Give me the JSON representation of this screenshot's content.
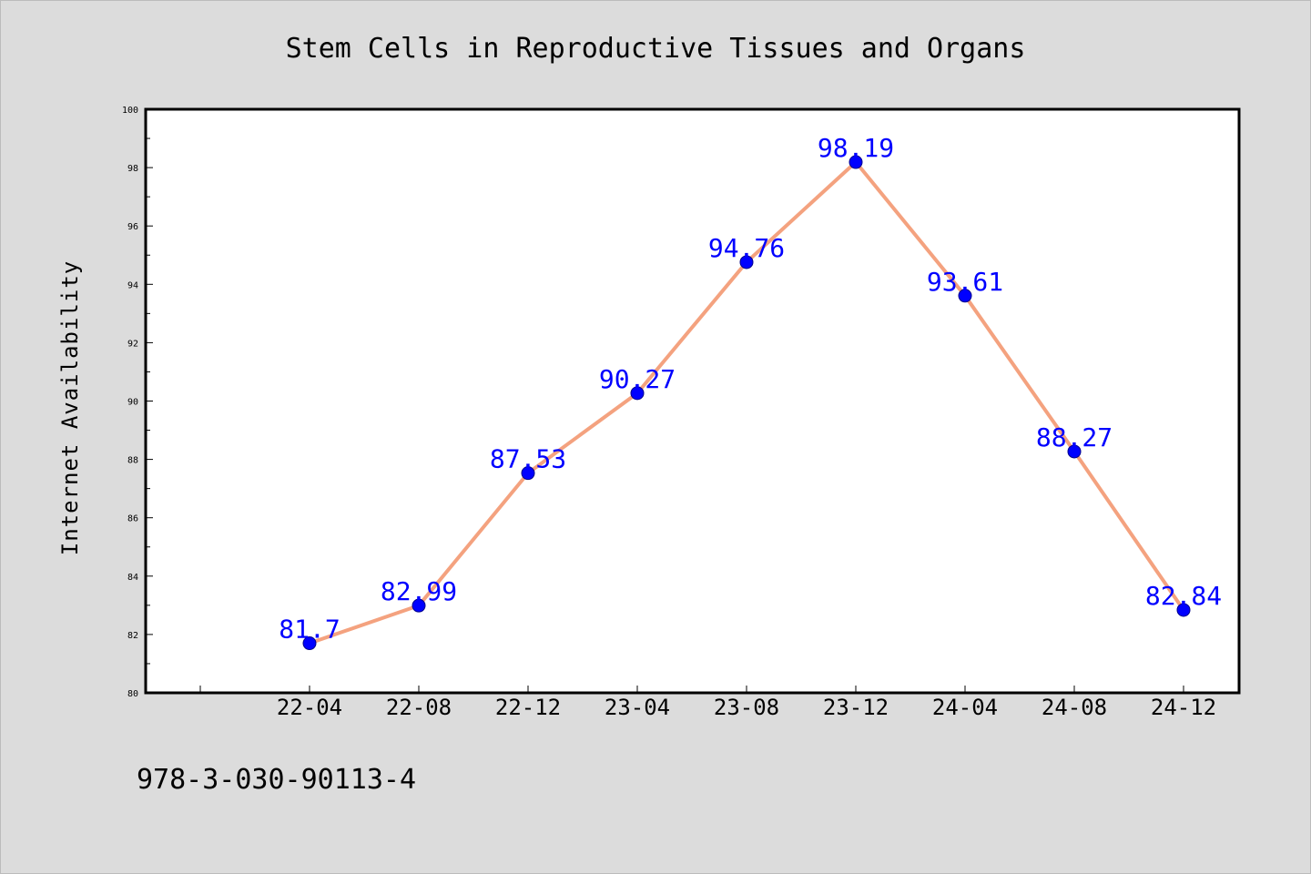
{
  "footer": {
    "isbn": "978-3-030-90113-4"
  },
  "colors": {
    "background": "#dcdcdc",
    "plot_background": "#ffffff",
    "line": "#f4a27f",
    "marker": "#0000ff",
    "data_label": "#0000ff",
    "axis": "#000000"
  },
  "chart_data": {
    "type": "line",
    "title": "Stem Cells in Reproductive Tissues and Organs",
    "xlabel": "",
    "ylabel": "Internet Availability",
    "categories": [
      "22-04",
      "22-08",
      "22-12",
      "23-04",
      "23-08",
      "23-12",
      "24-04",
      "24-08",
      "24-12"
    ],
    "series": [
      {
        "values": [
          81.7,
          82.99,
          87.53,
          90.27,
          94.76,
          98.19,
          93.61,
          88.27,
          82.84
        ],
        "labels": [
          "81.7",
          "82.99",
          "87.53",
          "90.27",
          "94.76",
          "98.19",
          "93.61",
          "88.27",
          "82.84"
        ]
      }
    ],
    "ylim": [
      80,
      100
    ],
    "yticks": [
      "80",
      "82",
      "84",
      "86",
      "88",
      "90",
      "92",
      "94",
      "96",
      "98",
      "100"
    ],
    "grid": false,
    "legend": "none"
  }
}
